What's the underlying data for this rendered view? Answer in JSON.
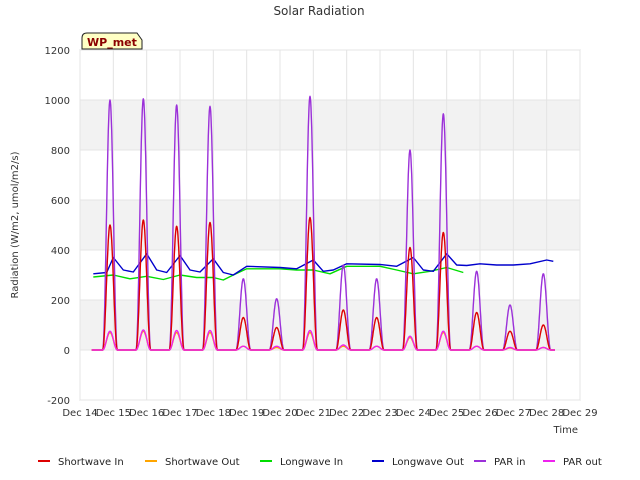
{
  "chart_data": {
    "type": "line",
    "title": "Solar Radiation",
    "xlabel": "Time",
    "ylabel": "Radiation (W/m2, umol/m2/s)",
    "ylim": [
      -200,
      1200
    ],
    "yticks": [
      -200,
      0,
      200,
      400,
      600,
      800,
      1000,
      1200
    ],
    "xlim": [
      14,
      29
    ],
    "xticks": [
      {
        "value": 14,
        "label": "Dec 14"
      },
      {
        "value": 15,
        "label": "Dec 15"
      },
      {
        "value": 16,
        "label": "Dec 16"
      },
      {
        "value": 17,
        "label": "Dec 17"
      },
      {
        "value": 18,
        "label": "Dec 18"
      },
      {
        "value": 19,
        "label": "Dec 19"
      },
      {
        "value": 20,
        "label": "Dec 20"
      },
      {
        "value": 21,
        "label": "Dec 21"
      },
      {
        "value": 22,
        "label": "Dec 22"
      },
      {
        "value": 23,
        "label": "Dec 23"
      },
      {
        "value": 24,
        "label": "Dec 24"
      },
      {
        "value": 25,
        "label": "Dec 25"
      },
      {
        "value": 26,
        "label": "Dec 26"
      },
      {
        "value": 27,
        "label": "Dec 27"
      },
      {
        "value": 28,
        "label": "Dec 28"
      },
      {
        "value": 29,
        "label": "Dec 29"
      }
    ],
    "annotation": "WP_met",
    "legend_position": "bottom",
    "series": [
      {
        "name": "Shortwave In",
        "color": "#dd0000",
        "kind": "daily",
        "peaks": [
          500,
          520,
          495,
          510,
          130,
          90,
          530,
          160,
          130,
          410,
          470,
          150,
          75,
          100
        ]
      },
      {
        "name": "Shortwave Out",
        "color": "#ffa500",
        "kind": "daily",
        "peaks": [
          70,
          75,
          70,
          70,
          15,
          10,
          70,
          15,
          15,
          50,
          70,
          15,
          8,
          10
        ]
      },
      {
        "name": "Longwave In",
        "color": "#00dd00",
        "kind": "steady",
        "points": [
          [
            14.4,
            292
          ],
          [
            15.0,
            300
          ],
          [
            15.5,
            285
          ],
          [
            16.0,
            295
          ],
          [
            16.5,
            282
          ],
          [
            17.0,
            300
          ],
          [
            17.5,
            290
          ],
          [
            18.0,
            290
          ],
          [
            18.3,
            280
          ],
          [
            18.6,
            300
          ],
          [
            19.0,
            325
          ],
          [
            20.0,
            325
          ],
          [
            20.5,
            320
          ],
          [
            21.0,
            320
          ],
          [
            21.5,
            305
          ],
          [
            22.0,
            335
          ],
          [
            23.0,
            335
          ],
          [
            23.5,
            320
          ],
          [
            24.0,
            305
          ],
          [
            24.5,
            315
          ],
          [
            25.0,
            330
          ],
          [
            25.5,
            310
          ]
        ]
      },
      {
        "name": "Longwave Out",
        "color": "#0000cc",
        "kind": "steady",
        "points": [
          [
            14.4,
            305
          ],
          [
            14.8,
            310
          ],
          [
            15.0,
            370
          ],
          [
            15.3,
            320
          ],
          [
            15.6,
            312
          ],
          [
            16.0,
            385
          ],
          [
            16.3,
            320
          ],
          [
            16.6,
            310
          ],
          [
            17.0,
            378
          ],
          [
            17.3,
            320
          ],
          [
            17.6,
            312
          ],
          [
            18.0,
            365
          ],
          [
            18.3,
            310
          ],
          [
            18.6,
            300
          ],
          [
            19.0,
            335
          ],
          [
            20.0,
            330
          ],
          [
            20.5,
            325
          ],
          [
            21.0,
            360
          ],
          [
            21.3,
            315
          ],
          [
            21.6,
            320
          ],
          [
            22.0,
            345
          ],
          [
            23.0,
            342
          ],
          [
            23.5,
            335
          ],
          [
            24.0,
            370
          ],
          [
            24.3,
            320
          ],
          [
            24.6,
            315
          ],
          [
            25.0,
            385
          ],
          [
            25.3,
            340
          ],
          [
            25.6,
            338
          ],
          [
            26.0,
            345
          ],
          [
            26.5,
            340
          ],
          [
            27.0,
            340
          ],
          [
            27.5,
            345
          ],
          [
            28.0,
            360
          ],
          [
            28.2,
            355
          ]
        ]
      },
      {
        "name": "PAR in",
        "color": "#9b30d9",
        "kind": "daily",
        "peaks": [
          1000,
          1005,
          980,
          975,
          285,
          205,
          1015,
          340,
          285,
          800,
          945,
          315,
          180,
          305
        ]
      },
      {
        "name": "PAR out",
        "color": "#ee22ee",
        "kind": "daily",
        "peaks": [
          75,
          80,
          78,
          78,
          15,
          15,
          78,
          20,
          15,
          55,
          75,
          15,
          10,
          10
        ]
      }
    ],
    "day_centers": [
      14.9,
      15.9,
      16.9,
      17.9,
      18.9,
      19.9,
      20.9,
      21.9,
      22.9,
      23.9,
      24.9,
      25.9,
      26.9,
      27.9
    ]
  }
}
